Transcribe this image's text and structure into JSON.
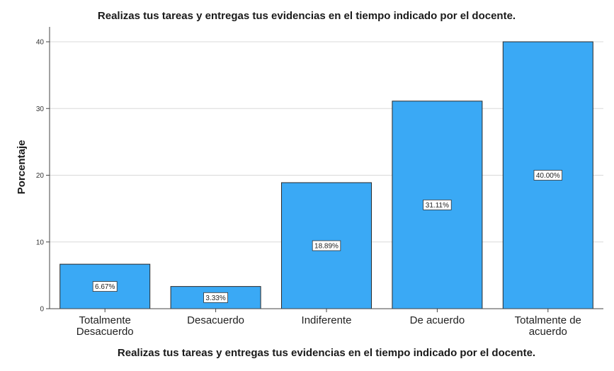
{
  "chart_data": {
    "type": "bar",
    "title": "Realizas tus tareas y entregas tus evidencias en el tiempo indicado por el docente.",
    "xlabel": "Realizas tus tareas y entregas tus evidencias en el tiempo indicado por el docente.",
    "ylabel": "Porcentaje",
    "categories": [
      [
        "Totalmente",
        "Desacuerdo"
      ],
      [
        "Desacuerdo"
      ],
      [
        "Indiferente"
      ],
      [
        "De acuerdo"
      ],
      [
        "Totalmente de",
        "acuerdo"
      ]
    ],
    "values": [
      6.67,
      3.33,
      18.89,
      31.11,
      40.0
    ],
    "data_labels": [
      "6.67%",
      "3.33%",
      "18.89%",
      "31.11%",
      "40.00%"
    ],
    "ylim": [
      0,
      40
    ],
    "yticks": [
      "0",
      "10",
      "20",
      "30",
      "40"
    ],
    "grid": true,
    "bar_color": "#3aa9f5"
  }
}
